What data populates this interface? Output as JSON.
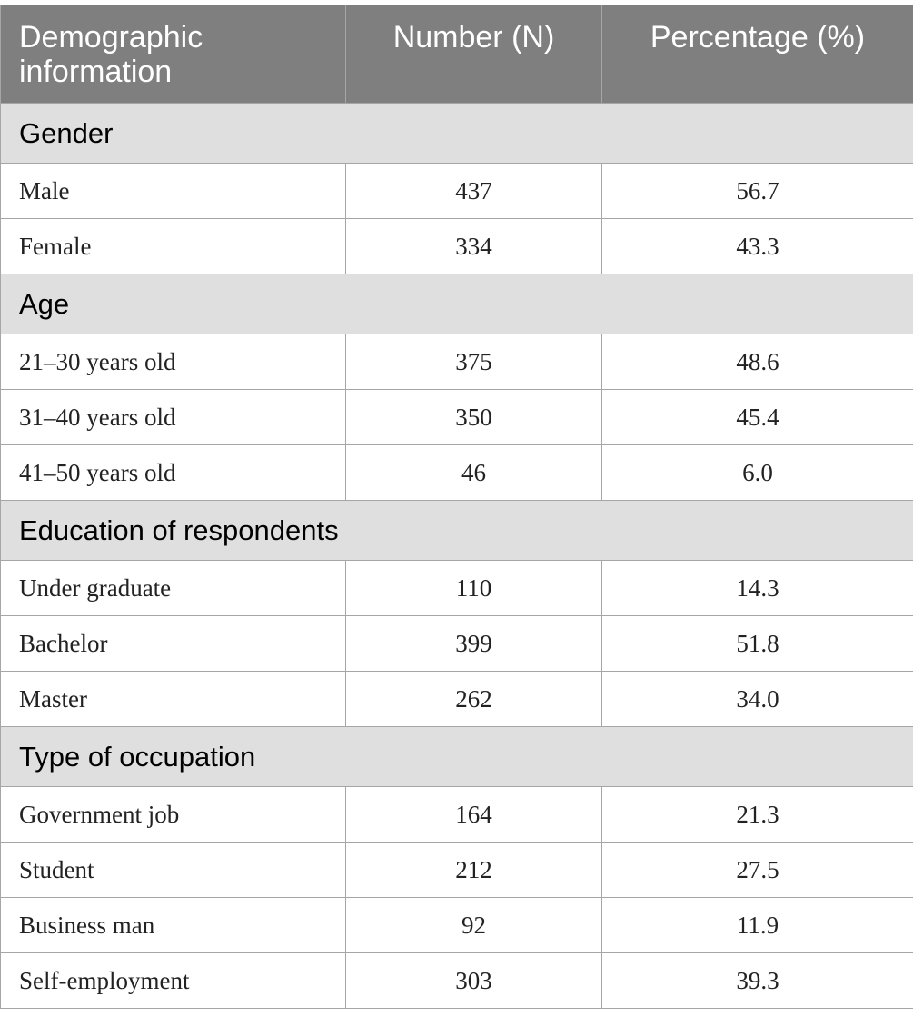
{
  "table": {
    "header": [
      "Demographic information",
      "Number (N)",
      "Percentage (%)"
    ],
    "sections": [
      {
        "title": "Gender",
        "rows": [
          [
            "Male",
            "437",
            "56.7"
          ],
          [
            "Female",
            "334",
            "43.3"
          ]
        ]
      },
      {
        "title": "Age",
        "rows": [
          [
            "21–30 years old",
            "375",
            "48.6"
          ],
          [
            "31–40 years old",
            "350",
            "45.4"
          ],
          [
            "41–50 years old",
            "46",
            "6.0"
          ]
        ]
      },
      {
        "title": "Education of respondents",
        "rows": [
          [
            "Under graduate",
            "110",
            "14.3"
          ],
          [
            "Bachelor",
            "399",
            "51.8"
          ],
          [
            "Master",
            "262",
            "34.0"
          ]
        ]
      },
      {
        "title": "Type of occupation",
        "rows": [
          [
            "Government job",
            "164",
            "21.3"
          ],
          [
            "Student",
            "212",
            "27.5"
          ],
          [
            "Business man",
            "92",
            "11.9"
          ],
          [
            "Self-employment",
            "303",
            "39.3"
          ]
        ]
      }
    ]
  }
}
